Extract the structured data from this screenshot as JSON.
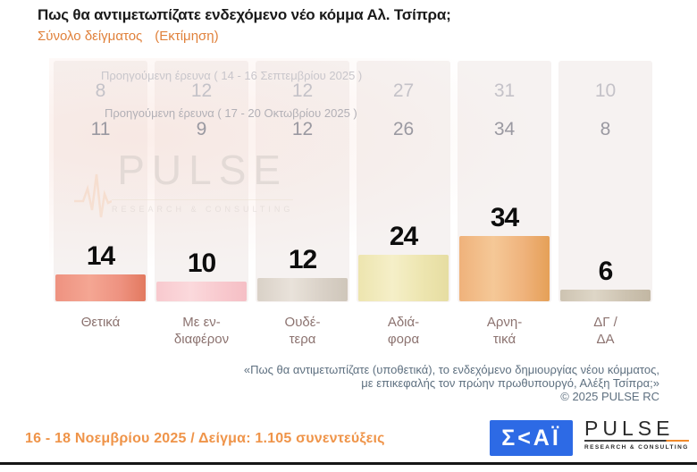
{
  "page": {
    "title": "Πως θα αντιμετωπίζατε ενδεχόμενο νέο κόμμα Αλ. Τσίπρα;",
    "subtitle_sample": "Σύνολο δείγματος",
    "subtitle_note": "(Εκτίμηση)",
    "accent_orange": "#e0813b"
  },
  "chart_data": {
    "type": "bar",
    "title": "Πως θα αντιμετωπίζατε ενδεχόμενο νέο κόμμα Αλ. Τσίπρα;",
    "categories": [
      "Θετικά",
      "Με ενδιαφέρον",
      "Ουδέτερα",
      "Αδιάφορα",
      "Αρνητικά",
      "ΔΓ / ΔΑ"
    ],
    "category_lines": [
      [
        "Θετικά"
      ],
      [
        "Με εν-",
        "διαφέρον"
      ],
      [
        "Ουδέ-",
        "τερα"
      ],
      [
        "Αδιά-",
        "φορα"
      ],
      [
        "Αρνη-",
        "τικά"
      ],
      [
        "ΔΓ /",
        "ΔΑ"
      ]
    ],
    "series": [
      {
        "name": "Προηγούμενη έρευνα ( 14 - 16 Σεπτεμβρίου 2025 )",
        "values": [
          8,
          12,
          12,
          27,
          31,
          10
        ]
      },
      {
        "name": "Προηγούμενη έρευνα ( 17 - 20 Οκτωβρίου 2025 )",
        "values": [
          11,
          9,
          12,
          26,
          34,
          8
        ]
      },
      {
        "name": "16 - 18 Νοεμβρίου 2025",
        "values": [
          14,
          10,
          12,
          24,
          34,
          6
        ]
      }
    ],
    "current_series_index": 2,
    "ylim": [
      0,
      40
    ],
    "unit": "%",
    "grid": false,
    "legend_position": "none",
    "bar_colors": [
      {
        "light": "#f4a693",
        "base": "#ee9280",
        "dark": "#e2795f"
      },
      {
        "light": "#fbd9dc",
        "base": "#f8c9ce",
        "dark": "#f5bfc5"
      },
      {
        "light": "#e9e2da",
        "base": "#d9d1c7",
        "dark": "#cfc6ba"
      },
      {
        "light": "#f5efc8",
        "base": "#ede5af",
        "dark": "#e6dda2"
      },
      {
        "light": "#f5c897",
        "base": "#efb27b",
        "dark": "#e5a057"
      },
      {
        "light": "#ded6c7",
        "base": "#cdc3b1",
        "dark": "#c2b7a3"
      }
    ]
  },
  "watermark": {
    "text": "PULSE",
    "subtext": "RESEARCH & CONSULTING"
  },
  "footnote": {
    "line1": "«Πως θα αντιμετωπίζατε (υποθετικά), το ενδεχόμενο δημιουργίας νέου κόμματος,",
    "line2": "με επικεφαλής τον πρώην πρωθυπουργό, Αλέξη Τσίπρα;»",
    "line3": "© 2025 PULSE RC"
  },
  "footer": {
    "fieldwork": "16 - 18 Νοεμβρίου 2025 / Δείγμα: 1.105 συνεντεύξεις"
  },
  "logos": {
    "skai_text": "Σ<ΑΪ",
    "pulse_text": "PULSE",
    "pulse_subtext": "RESEARCH & CONSULTING"
  }
}
